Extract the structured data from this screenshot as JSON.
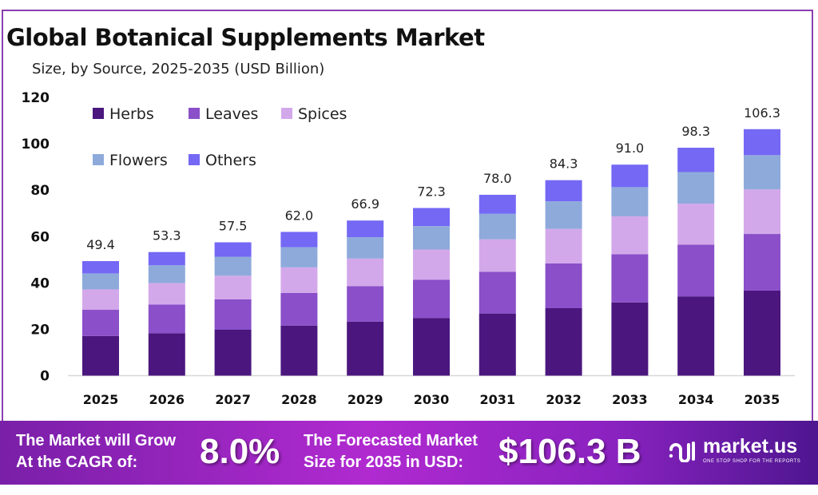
{
  "title": "Global Botanical Supplements Market",
  "subtitle": "Size, by Source, 2025-2035 (USD Billion)",
  "chart_data": {
    "type": "bar",
    "stacked": true,
    "categories": [
      "2025",
      "2026",
      "2027",
      "2028",
      "2029",
      "2030",
      "2031",
      "2032",
      "2033",
      "2034",
      "2035"
    ],
    "series": [
      {
        "name": "Herbs",
        "color": "#4b177f",
        "values": [
          17.1,
          18.3,
          19.8,
          21.6,
          23.3,
          24.9,
          26.8,
          29.1,
          31.6,
          34.2,
          36.7
        ]
      },
      {
        "name": "Leaves",
        "color": "#8a4fc9",
        "values": [
          11.3,
          12.4,
          13.1,
          14.1,
          15.3,
          16.5,
          18.0,
          19.3,
          20.8,
          22.3,
          24.4
        ]
      },
      {
        "name": "Spices",
        "color": "#d3a8ea",
        "values": [
          8.8,
          9.2,
          10.2,
          11.0,
          11.9,
          13.0,
          14.0,
          14.9,
          16.3,
          17.7,
          19.2
        ]
      },
      {
        "name": "Flowers",
        "color": "#8eaadb",
        "values": [
          6.9,
          7.7,
          8.2,
          8.7,
          9.2,
          10.1,
          11.0,
          11.9,
          12.6,
          13.6,
          14.8
        ]
      },
      {
        "name": "Others",
        "color": "#7468f5",
        "values": [
          5.3,
          5.7,
          6.2,
          6.6,
          7.2,
          7.8,
          8.2,
          9.1,
          9.7,
          10.5,
          11.2
        ]
      }
    ],
    "totals": [
      "49.4",
      "53.3",
      "57.5",
      "62.0",
      "66.9",
      "72.3",
      "78.0",
      "84.3",
      "91.0",
      "98.3",
      "106.3"
    ],
    "yticks": [
      "0",
      "20",
      "40",
      "60",
      "80",
      "100",
      "120"
    ],
    "ylim": [
      0,
      120
    ],
    "grid": false,
    "legend_position": "top-left"
  },
  "footer": {
    "cagr_label_1": "The Market will Grow",
    "cagr_label_2": "At the CAGR of:",
    "cagr_value": "8.0%",
    "forecast_label_1": "The Forecasted Market",
    "forecast_label_2": "Size for 2035 in USD:",
    "forecast_value": "$106.3 B",
    "logo_text": "market.us",
    "logo_tagline": "ONE STOP SHOP FOR THE REPORTS"
  }
}
